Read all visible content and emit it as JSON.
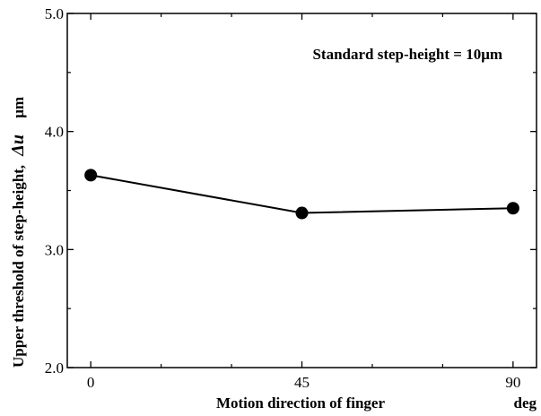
{
  "chart_data": {
    "type": "line",
    "title": "",
    "x": [
      0,
      45,
      90
    ],
    "x_tick_labels": [
      "0",
      "45",
      "90"
    ],
    "xlim": [
      -5,
      95
    ],
    "ylim": [
      2.0,
      5.0
    ],
    "y_ticks": [
      2.0,
      3.0,
      4.0,
      5.0
    ],
    "y_tick_labels": [
      "2.0",
      "3.0",
      "4.0",
      "5.0"
    ],
    "series": [
      {
        "values": [
          3.63,
          3.31,
          3.35
        ]
      }
    ],
    "xlabel": "Motion direction of finger",
    "xlabel_unit": "deg",
    "ylabel_text": "Upper threshold of step-height,",
    "ylabel_symbol": "Δu",
    "ylabel_unit": "μm",
    "annotation": "Standard step-height = 10μm",
    "grid": false,
    "legend": "none",
    "marker": "filled-circle",
    "color": "#000000"
  }
}
